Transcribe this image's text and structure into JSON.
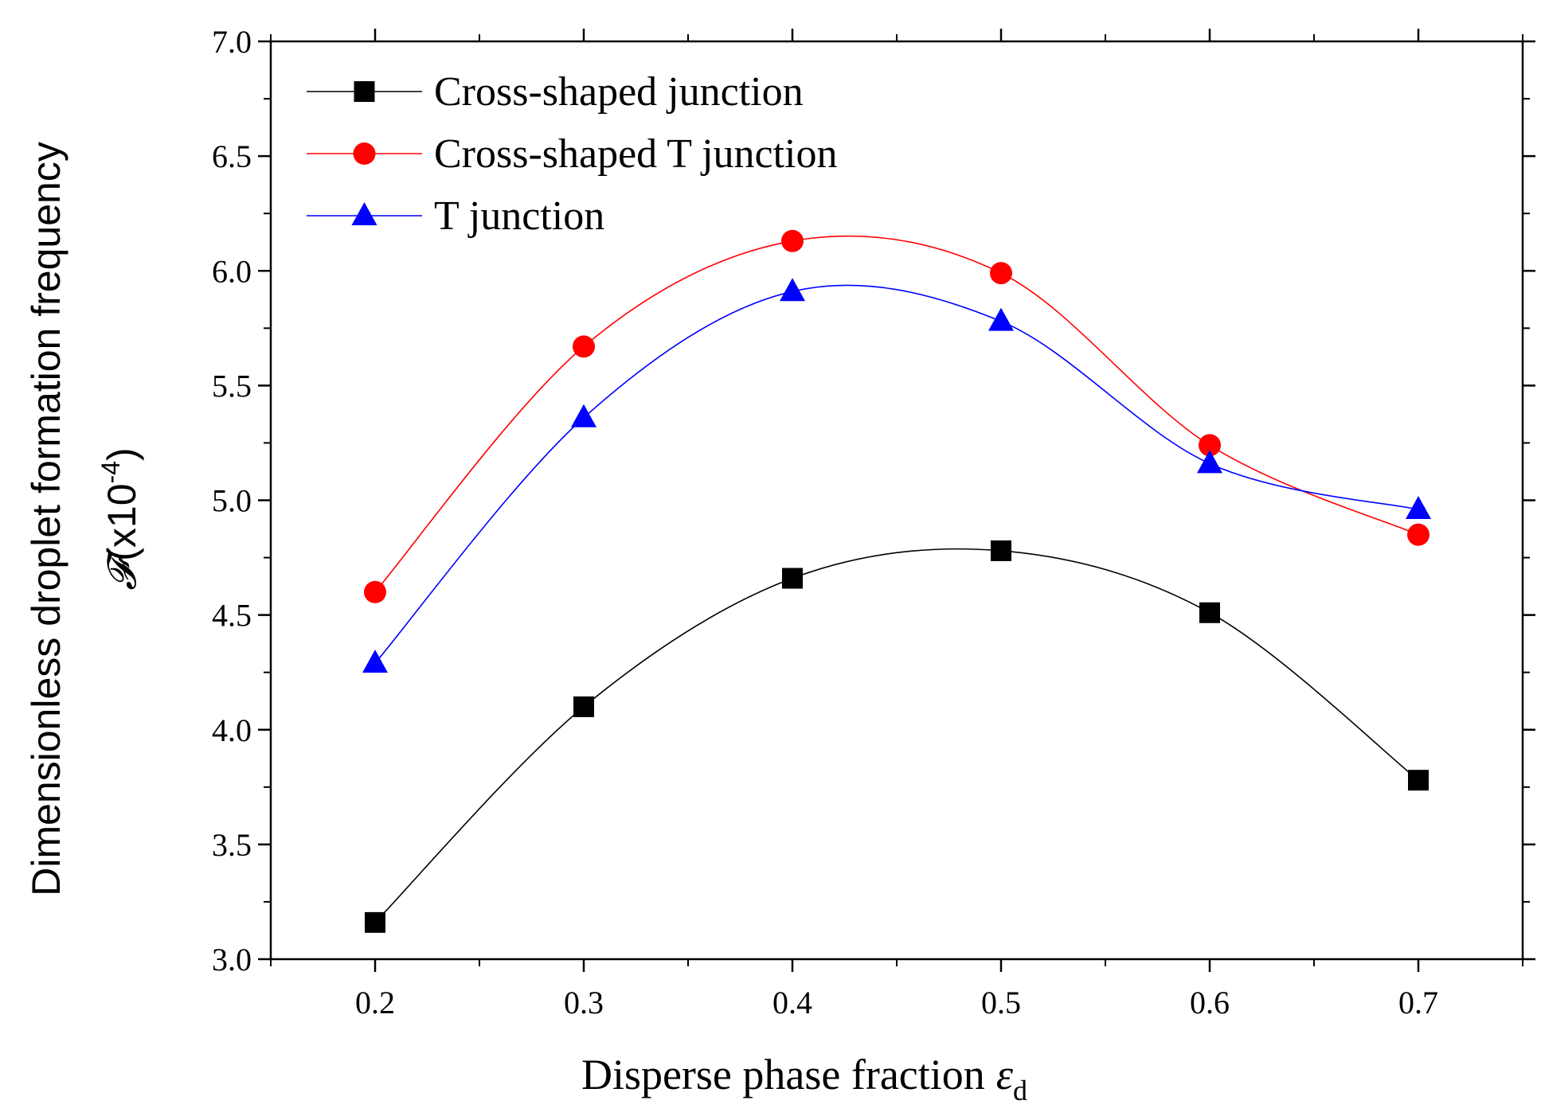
{
  "chart_data": {
    "type": "line",
    "title": "",
    "xlabel": "Disperse phase fraction",
    "xlabel_symbol": "ε",
    "xlabel_subscript": "d",
    "ylabel_line1": "Dimensionless droplet formation frequency",
    "ylabel_symbol": "𝓕",
    "ylabel_unit_prefix": "(x10",
    "ylabel_exponent": "-4",
    "ylabel_unit_suffix": ")",
    "xlim": [
      0.15,
      0.75
    ],
    "ylim": [
      3.0,
      7.0
    ],
    "x_ticks": [
      0.2,
      0.3,
      0.4,
      0.5,
      0.6,
      0.7
    ],
    "x_tick_labels": [
      "0.2",
      "0.3",
      "0.4",
      "0.5",
      "0.6",
      "0.7"
    ],
    "y_ticks": [
      3.0,
      3.5,
      4.0,
      4.5,
      5.0,
      5.5,
      6.0,
      6.5,
      7.0
    ],
    "y_tick_labels": [
      "3.0",
      "3.5",
      "4.0",
      "4.5",
      "5.0",
      "5.5",
      "6.0",
      "6.5",
      "7.0"
    ],
    "grid": false,
    "legend_position": "top-left",
    "x": [
      0.2,
      0.3,
      0.4,
      0.5,
      0.6,
      0.7
    ],
    "series": [
      {
        "name": "Cross-shaped junction",
        "marker": "square",
        "color": "#000000",
        "values": [
          3.16,
          4.1,
          4.66,
          4.78,
          4.51,
          3.78
        ]
      },
      {
        "name": "Cross-shaped T junction",
        "marker": "circle",
        "color": "#ff0000",
        "values": [
          4.6,
          5.67,
          6.13,
          5.99,
          5.24,
          4.85
        ]
      },
      {
        "name": "T junction",
        "marker": "triangle",
        "color": "#0000ff",
        "values": [
          4.29,
          5.36,
          5.91,
          5.78,
          5.16,
          4.96
        ]
      }
    ]
  }
}
